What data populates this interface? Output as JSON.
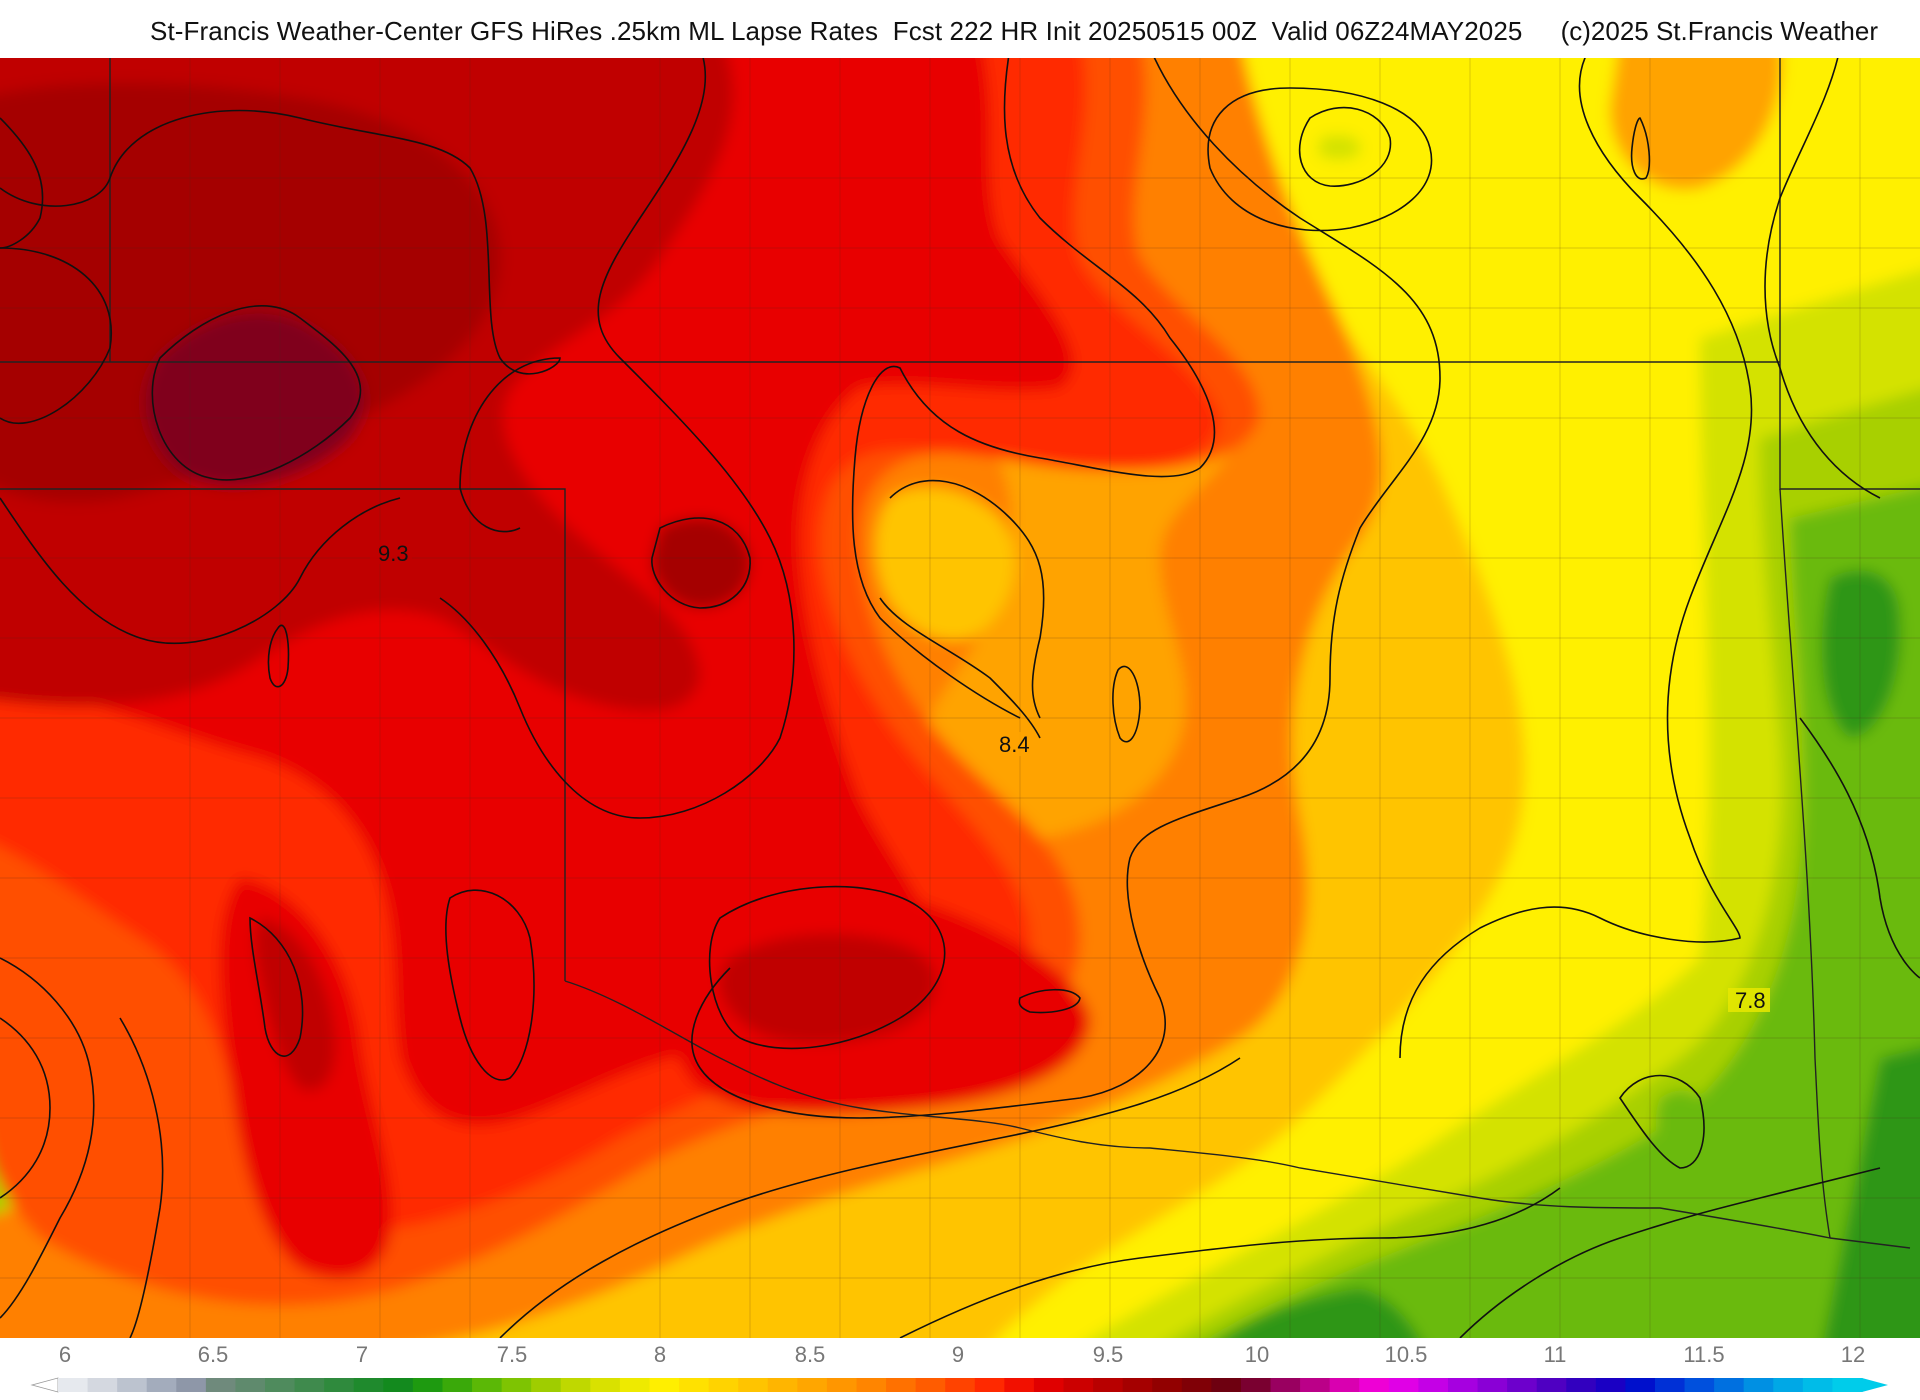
{
  "header": {
    "title": "St-Francis Weather-Center GFS HiRes .25km ML Lapse Rates  Fcst 222 HR Init 20250515 00Z  Valid 06Z24MAY2025",
    "copyright": "(c)2025 St.Francis Weather"
  },
  "map": {
    "contour_labels": [
      "9.3",
      "8.4",
      "7.8"
    ],
    "border_color": "#222222",
    "contour_color": "#111111"
  },
  "colorbar": {
    "tick_labels": [
      "6",
      "6.5",
      "7",
      "7.5",
      "8",
      "8.5",
      "9",
      "9.5",
      "10",
      "10.5",
      "11",
      "11.5",
      "12"
    ],
    "min": 5.7,
    "max": 12.1,
    "step": 0.1,
    "colors": [
      "#e6e9ee",
      "#d4d8e0",
      "#bcc3cf",
      "#a3acbc",
      "#8e97a8",
      "#6f8a7c",
      "#5f8a6d",
      "#4f8b5d",
      "#3f8a4d",
      "#2f8a3d",
      "#1f8a2d",
      "#138a1e",
      "#1e9a10",
      "#3aa90a",
      "#5bb806",
      "#7ec402",
      "#9fcd00",
      "#bfd800",
      "#d9e100",
      "#eeea00",
      "#ffef00",
      "#ffe100",
      "#ffd300",
      "#ffc400",
      "#ffb500",
      "#ffa600",
      "#ff9600",
      "#ff8500",
      "#ff7100",
      "#ff5c00",
      "#ff4300",
      "#ff2900",
      "#f21000",
      "#e00000",
      "#cc0000",
      "#b80000",
      "#a50000",
      "#920000",
      "#800006",
      "#6e0010",
      "#7a0030",
      "#990060",
      "#bb0088",
      "#d900b0",
      "#ee00d5",
      "#e000e6",
      "#c400e6",
      "#a600e0",
      "#8a00d6",
      "#6d00cc",
      "#4f00c2",
      "#3200bf",
      "#1a00c4",
      "#0010cc",
      "#0030d6",
      "#0050dd",
      "#0070e0",
      "#0090e3",
      "#00a8e6",
      "#00bce8",
      "#00ccea"
    ],
    "legend_arrow_left": "#ffffff",
    "legend_arrow_right": "#00ccea"
  },
  "palette": {
    "dark_maroon": "#80001e",
    "maroon": "#a50000",
    "dark_red": "#c00000",
    "red": "#e80000",
    "red_orange": "#ff2a00",
    "orange_red": "#ff5000",
    "orange": "#ff8000",
    "light_orange": "#ffa300",
    "gold": "#ffc400",
    "yellow": "#fff000",
    "yellow_green": "#d4e200",
    "lime": "#a8d000",
    "green": "#6aba0a",
    "dark_green": "#2e9614"
  }
}
